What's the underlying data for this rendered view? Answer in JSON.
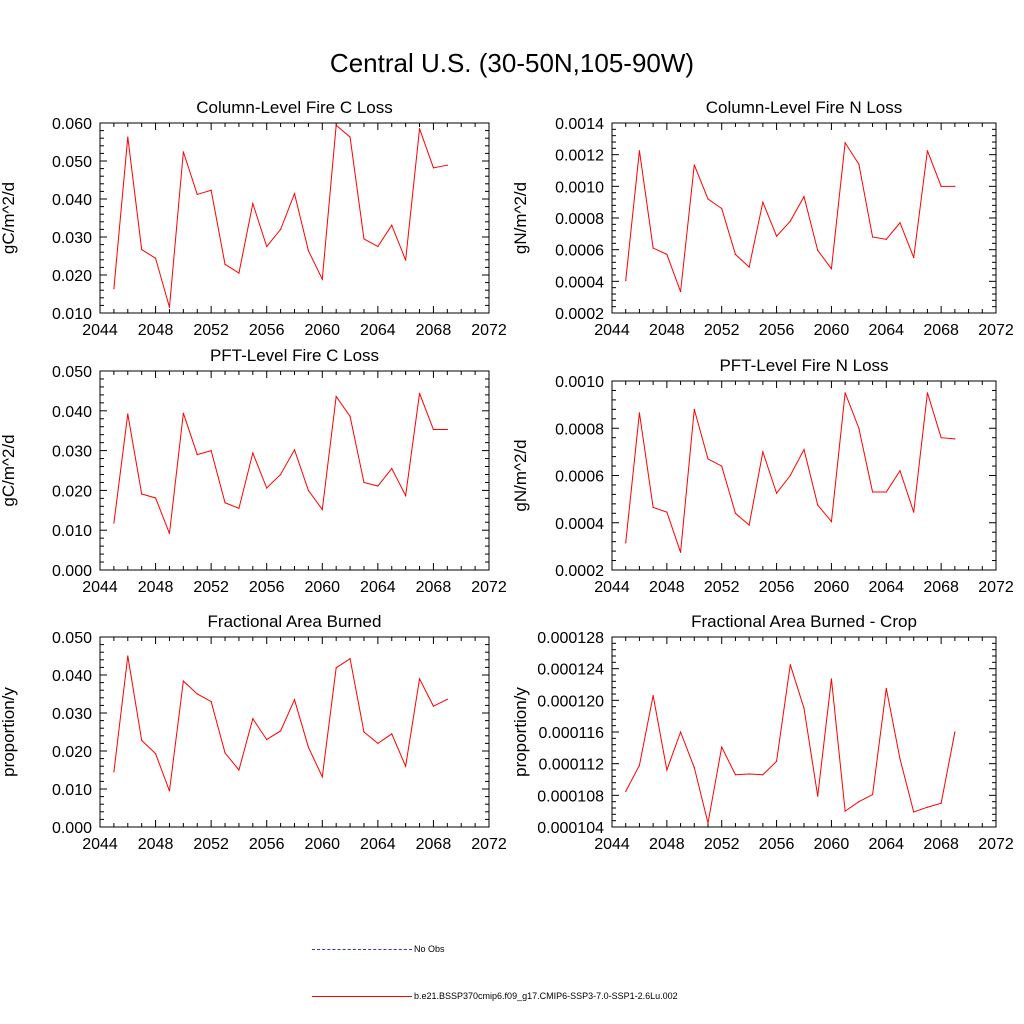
{
  "title": "Central U.S. (30-50N,105-90W)",
  "colors": {
    "model": "#ff0000",
    "obs": "#3333cc",
    "axis": "#000000"
  },
  "legend": {
    "obs_label": "No Obs",
    "model_label": "b.e21.BSSP370cmip6.f09_g17.CMIP6-SSP3-7.0-SSP1-2.6Lu.002"
  },
  "chart_data": [
    {
      "type": "line",
      "title": "Column-Level Fire C Loss",
      "ylabel": "gC/m^2/d",
      "xlim": [
        2044,
        2072
      ],
      "ylim": [
        0.01,
        0.06
      ],
      "x_ticks": [
        "2044",
        "2048",
        "2052",
        "2056",
        "2060",
        "2064",
        "2068",
        "2072"
      ],
      "y_ticks": [
        "0.010",
        "0.020",
        "0.030",
        "0.040",
        "0.050",
        "0.060"
      ],
      "x": [
        2045,
        2046,
        2047,
        2048,
        2049,
        2050,
        2051,
        2052,
        2053,
        2054,
        2055,
        2056,
        2057,
        2058,
        2059,
        2060,
        2061,
        2062,
        2063,
        2064,
        2065,
        2066,
        2067,
        2068,
        2069
      ],
      "series": [
        {
          "values": [
            0.0164,
            0.0563,
            0.0267,
            0.0244,
            0.0115,
            0.0524,
            0.0412,
            0.0423,
            0.0228,
            0.0205,
            0.0388,
            0.0275,
            0.032,
            0.0414,
            0.0264,
            0.0189,
            0.0594,
            0.0563,
            0.0295,
            0.0275,
            0.0331,
            0.0239,
            0.0585,
            0.0482,
            0.0489
          ]
        }
      ]
    },
    {
      "type": "line",
      "title": "Column-Level Fire N Loss",
      "ylabel": "gN/m^2/d",
      "xlim": [
        2044,
        2072
      ],
      "ylim": [
        0.0002,
        0.0014
      ],
      "x_ticks": [
        "2044",
        "2048",
        "2052",
        "2056",
        "2060",
        "2064",
        "2068",
        "2072"
      ],
      "y_ticks": [
        "0.0002",
        "0.0004",
        "0.0006",
        "0.0008",
        "0.0010",
        "0.0012",
        "0.0014"
      ],
      "x": [
        2045,
        2046,
        2047,
        2048,
        2049,
        2050,
        2051,
        2052,
        2053,
        2054,
        2055,
        2056,
        2057,
        2058,
        2059,
        2060,
        2061,
        2062,
        2063,
        2064,
        2065,
        2066,
        2067,
        2068,
        2069
      ],
      "series": [
        {
          "values": [
            0.000405,
            0.001225,
            0.00061,
            0.00057,
            0.000335,
            0.001135,
            0.00092,
            0.00086,
            0.00057,
            0.00049,
            0.0009,
            0.000685,
            0.00078,
            0.000935,
            0.000595,
            0.00048,
            0.001275,
            0.00114,
            0.00068,
            0.000665,
            0.00077,
            0.00055,
            0.001225,
            0.001,
            0.001
          ]
        }
      ]
    },
    {
      "type": "line",
      "title": "PFT-Level Fire C Loss",
      "ylabel": "gC/m^2/d",
      "xlim": [
        2044,
        2072
      ],
      "ylim": [
        0.0,
        0.05
      ],
      "x_ticks": [
        "2044",
        "2048",
        "2052",
        "2056",
        "2060",
        "2064",
        "2068",
        "2072"
      ],
      "y_ticks": [
        "0.000",
        "0.010",
        "0.020",
        "0.030",
        "0.040",
        "0.050"
      ],
      "x": [
        2045,
        2046,
        2047,
        2048,
        2049,
        2050,
        2051,
        2052,
        2053,
        2054,
        2055,
        2056,
        2057,
        2058,
        2059,
        2060,
        2061,
        2062,
        2063,
        2064,
        2065,
        2066,
        2067,
        2068,
        2069
      ],
      "series": [
        {
          "values": [
            0.0118,
            0.0392,
            0.0191,
            0.0181,
            0.0092,
            0.0394,
            0.029,
            0.03,
            0.0169,
            0.0155,
            0.0294,
            0.0206,
            0.024,
            0.0302,
            0.02,
            0.0152,
            0.0436,
            0.0386,
            0.022,
            0.0211,
            0.0255,
            0.0187,
            0.0444,
            0.0353,
            0.0353
          ]
        }
      ]
    },
    {
      "type": "line",
      "title": "PFT-Level Fire N Loss",
      "ylabel": "gN/m^2/d",
      "xlim": [
        2044,
        2072
      ],
      "ylim": [
        0.0002,
        0.001
      ],
      "x_ticks": [
        "2044",
        "2048",
        "2052",
        "2056",
        "2060",
        "2064",
        "2068",
        "2072"
      ],
      "y_ticks": [
        "0.0002",
        "0.0004",
        "0.0006",
        "0.0008",
        "0.0010"
      ],
      "x": [
        2045,
        2046,
        2047,
        2048,
        2049,
        2050,
        2051,
        2052,
        2053,
        2054,
        2055,
        2056,
        2057,
        2058,
        2059,
        2060,
        2061,
        2062,
        2063,
        2064,
        2065,
        2066,
        2067,
        2068,
        2069
      ],
      "series": [
        {
          "values": [
            0.000315,
            0.000865,
            0.000465,
            0.000445,
            0.000275,
            0.00088,
            0.00067,
            0.00064,
            0.00044,
            0.00039,
            0.0007,
            0.000525,
            0.0006,
            0.00071,
            0.000475,
            0.000405,
            0.00095,
            0.0008,
            0.00053,
            0.00053,
            0.00062,
            0.000445,
            0.00095,
            0.00076,
            0.000755
          ]
        }
      ]
    },
    {
      "type": "line",
      "title": "Fractional Area Burned",
      "ylabel": "proportion/y",
      "xlim": [
        2044,
        2072
      ],
      "ylim": [
        0.0,
        0.05
      ],
      "x_ticks": [
        "2044",
        "2048",
        "2052",
        "2056",
        "2060",
        "2064",
        "2068",
        "2072"
      ],
      "y_ticks": [
        "0.000",
        "0.010",
        "0.020",
        "0.030",
        "0.040",
        "0.050"
      ],
      "x": [
        2045,
        2046,
        2047,
        2048,
        2049,
        2050,
        2051,
        2052,
        2053,
        2054,
        2055,
        2056,
        2057,
        2058,
        2059,
        2060,
        2061,
        2062,
        2063,
        2064,
        2065,
        2066,
        2067,
        2068,
        2069
      ],
      "series": [
        {
          "values": [
            0.0145,
            0.045,
            0.0228,
            0.0193,
            0.0095,
            0.0384,
            0.035,
            0.033,
            0.0195,
            0.015,
            0.0285,
            0.023,
            0.0253,
            0.0335,
            0.021,
            0.0132,
            0.0419,
            0.0443,
            0.025,
            0.022,
            0.0245,
            0.016,
            0.039,
            0.0318,
            0.0336
          ]
        }
      ]
    },
    {
      "type": "line",
      "title": "Fractional Area Burned - Crop",
      "ylabel": "proportion/y",
      "xlim": [
        2044,
        2072
      ],
      "ylim": [
        0.000104,
        0.000128
      ],
      "x_ticks": [
        "2044",
        "2048",
        "2052",
        "2056",
        "2060",
        "2064",
        "2068",
        "2072"
      ],
      "y_ticks": [
        "0.000104",
        "0.000108",
        "0.000112",
        "0.000116",
        "0.000120",
        "0.000124",
        "0.000128"
      ],
      "x": [
        2045,
        2046,
        2047,
        2048,
        2049,
        2050,
        2051,
        2052,
        2053,
        2054,
        2055,
        2056,
        2057,
        2058,
        2059,
        2060,
        2061,
        2062,
        2063,
        2064,
        2065,
        2066,
        2067,
        2068,
        2069
      ],
      "series": [
        {
          "values": [
            0.0001085,
            0.0001118,
            0.0001206,
            0.0001112,
            0.000116,
            0.0001115,
            0.0001045,
            0.0001141,
            0.0001106,
            0.0001107,
            0.0001106,
            0.0001123,
            0.0001245,
            0.000119,
            0.0001079,
            0.0001227,
            0.000106,
            0.0001072,
            0.0001081,
            0.0001215,
            0.0001126,
            0.0001059,
            0.0001065,
            0.000107,
            0.000116
          ]
        }
      ]
    }
  ]
}
